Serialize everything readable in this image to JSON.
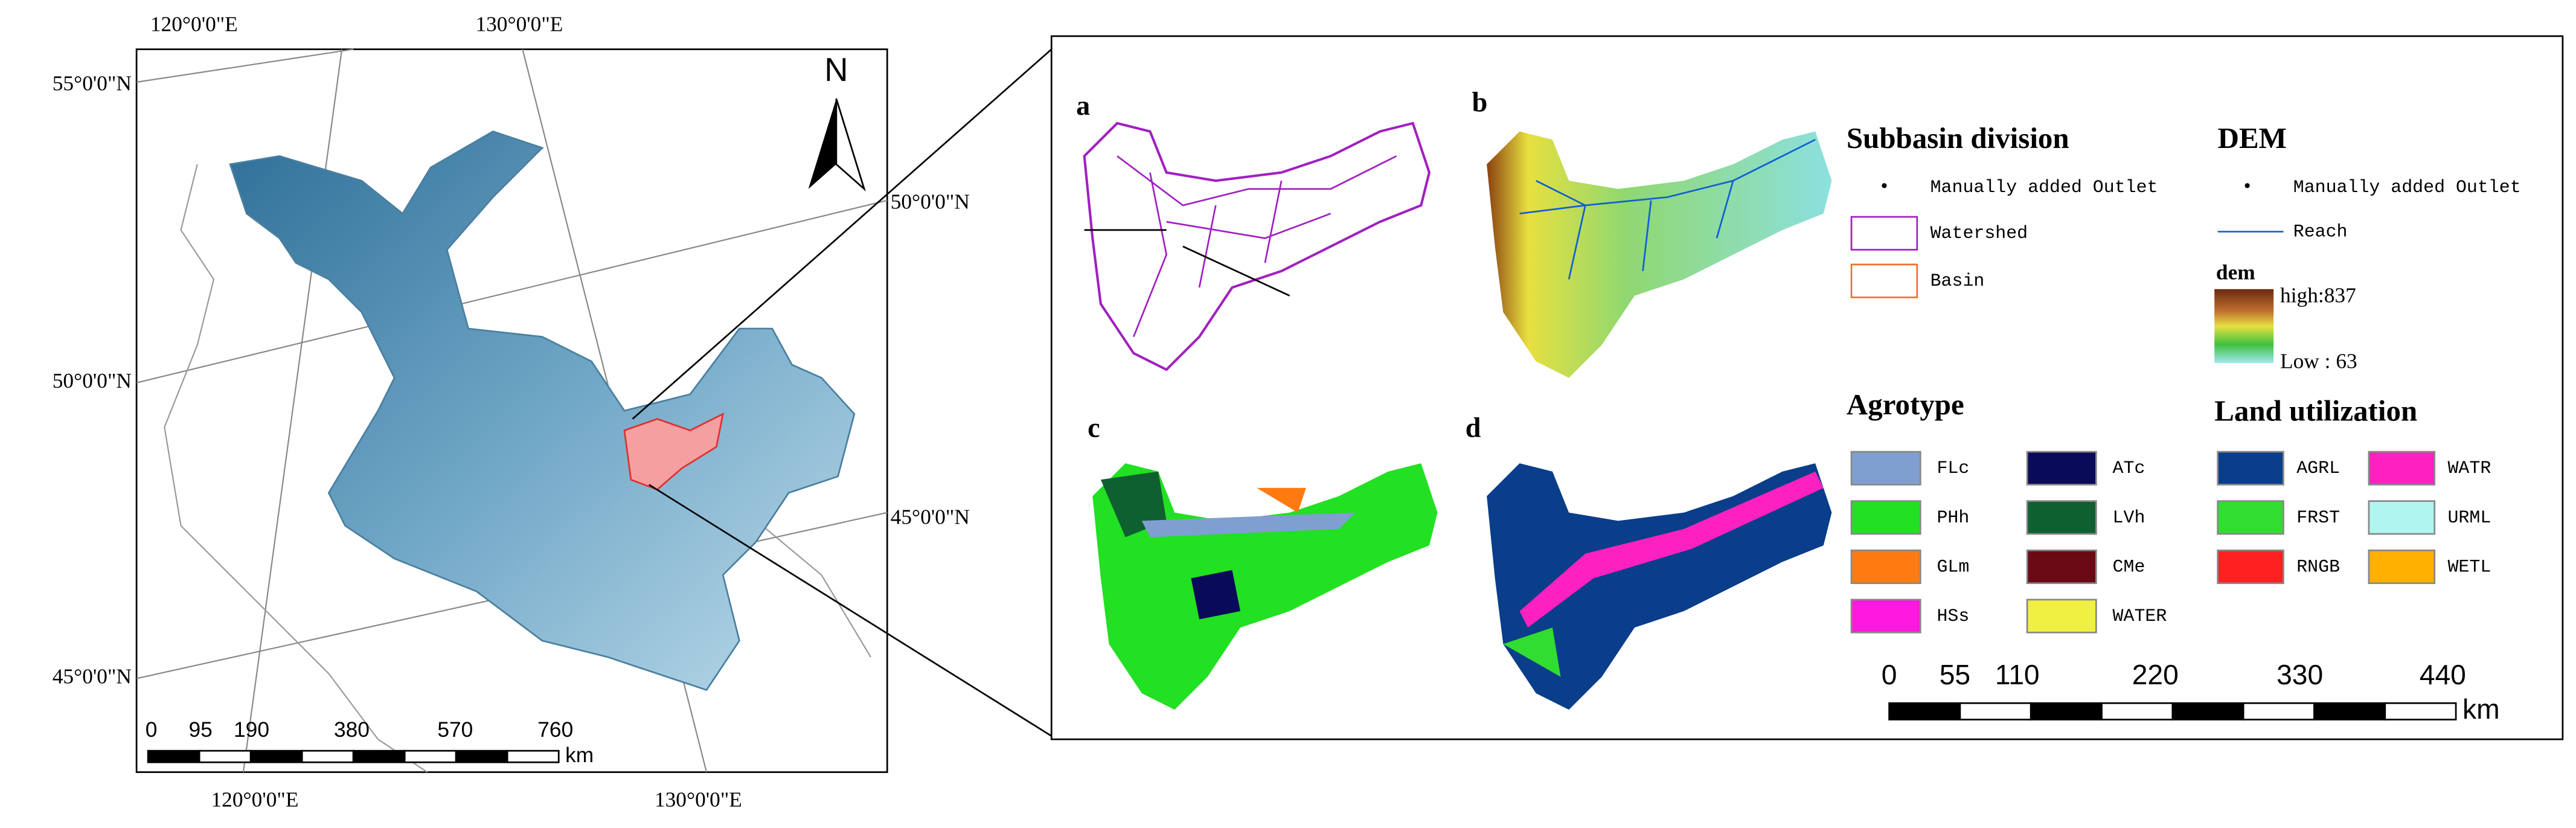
{
  "left_map": {
    "top_longitudes": [
      "120°0'0\"E",
      "130°0'0\"E"
    ],
    "bottom_longitudes": [
      "120°0'0\"E",
      "130°0'0\"E"
    ],
    "left_latitudes": [
      "55°0'0\"N",
      "50°0'0\"N",
      "45°0'0\"N"
    ],
    "right_latitudes": [
      "50°0'0\"N",
      "45°0'0\"N"
    ],
    "north": "N",
    "scale": {
      "ticks": [
        "0",
        "95",
        "190",
        "380",
        "570",
        "760"
      ],
      "unit": "km"
    }
  },
  "right_panel": {
    "panels": [
      "a",
      "b",
      "c",
      "d"
    ],
    "subbasin_legend": {
      "title": "Subbasin division",
      "items": [
        "Manually added Outlet",
        "Watershed",
        "Basin"
      ]
    },
    "dem_legend": {
      "title": "DEM",
      "items": [
        "Manually added Outlet",
        "Reach"
      ],
      "ramp_title": "dem",
      "high": "high:837",
      "low": "Low : 63"
    },
    "agrotype_legend": {
      "title": "Agrotype",
      "items": [
        {
          "label": "FLc",
          "color": "#7f9fd0"
        },
        {
          "label": "ATc",
          "color": "#0a0a5a"
        },
        {
          "label": "PHh",
          "color": "#22e022"
        },
        {
          "label": "LVh",
          "color": "#0f6030"
        },
        {
          "label": "GLm",
          "color": "#ff7a10"
        },
        {
          "label": "CMe",
          "color": "#6a0a14"
        },
        {
          "label": "HSs",
          "color": "#ff18e0"
        },
        {
          "label": "WATER",
          "color": "#f0f040"
        }
      ]
    },
    "land_legend": {
      "title": "Land utilization",
      "items": [
        {
          "label": "AGRL",
          "color": "#0a3d8a"
        },
        {
          "label": "WATR",
          "color": "#ff20c0"
        },
        {
          "label": "FRST",
          "color": "#30dd30"
        },
        {
          "label": "URML",
          "color": "#b0f5f0"
        },
        {
          "label": "RNGB",
          "color": "#ff2020"
        },
        {
          "label": "WETL",
          "color": "#ffb000"
        }
      ]
    },
    "scale": {
      "ticks": [
        "0",
        "55",
        "110",
        "220",
        "330",
        "440"
      ],
      "unit": "km"
    }
  }
}
